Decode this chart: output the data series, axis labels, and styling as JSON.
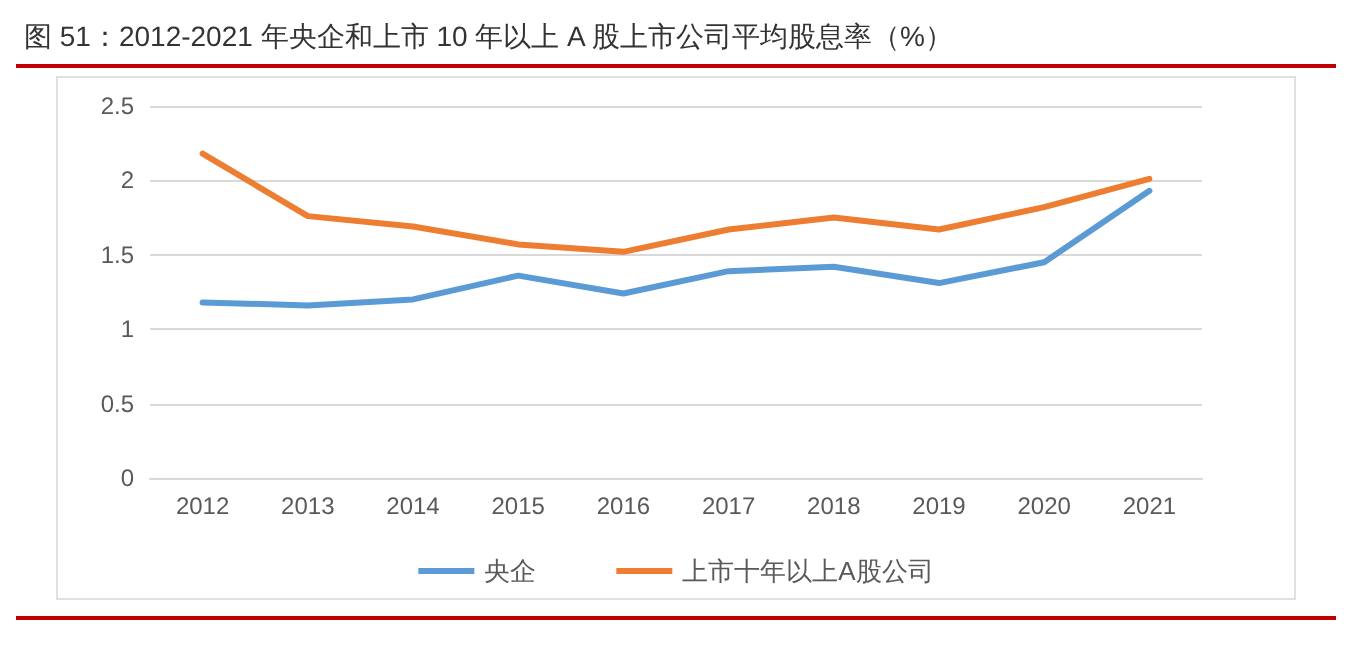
{
  "chart_data": {
    "type": "line",
    "title": "图 51：2012-2021 年央企和上市 10 年以上 A 股上市公司平均股息率（%）",
    "categories": [
      "2012",
      "2013",
      "2014",
      "2015",
      "2016",
      "2017",
      "2018",
      "2019",
      "2020",
      "2021"
    ],
    "series": [
      {
        "name": "央企",
        "color": "#5b9bd5",
        "values": [
          1.18,
          1.16,
          1.2,
          1.36,
          1.24,
          1.39,
          1.42,
          1.31,
          1.45,
          1.93
        ]
      },
      {
        "name": "上市十年以上A股公司",
        "color": "#ed7d31",
        "values": [
          2.18,
          1.76,
          1.69,
          1.57,
          1.52,
          1.67,
          1.75,
          1.67,
          1.82,
          2.01
        ]
      }
    ],
    "ylim": [
      0,
      2.5
    ],
    "yticks": [
      0,
      0.5,
      1,
      1.5,
      2,
      2.5
    ],
    "grid": "y",
    "legend": "bottom",
    "marker": "none",
    "line_style": "solid"
  }
}
